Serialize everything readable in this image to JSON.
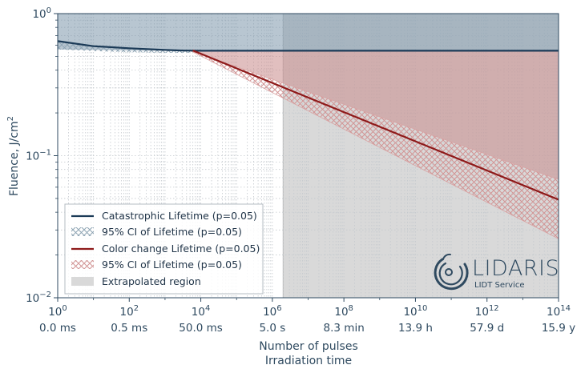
{
  "chart_data": {
    "type": "line",
    "xscale": "log",
    "yscale": "log",
    "xlim": [
      1,
      100000000000000.0
    ],
    "ylim": [
      0.01,
      1
    ],
    "x_ticks": [
      {
        "value": 1,
        "label_base": "10",
        "label_exp": "0",
        "time": "0.0 ms"
      },
      {
        "value": 100,
        "label_base": "10",
        "label_exp": "2",
        "time": "0.5 ms"
      },
      {
        "value": 10000,
        "label_base": "10",
        "label_exp": "4",
        "time": "50.0 ms"
      },
      {
        "value": 1000000,
        "label_base": "10",
        "label_exp": "6",
        "time": "5.0 s"
      },
      {
        "value": 100000000,
        "label_base": "10",
        "label_exp": "8",
        "time": "8.3 min"
      },
      {
        "value": 10000000000,
        "label_base": "10",
        "label_exp": "10",
        "time": "13.9 h"
      },
      {
        "value": 1000000000000,
        "label_base": "10",
        "label_exp": "12",
        "time": "57.9 d"
      },
      {
        "value": 100000000000000,
        "label_base": "10",
        "label_exp": "14",
        "time": "15.9 y"
      }
    ],
    "y_ticks": [
      {
        "value": 1,
        "label_base": "10",
        "label_exp": "0"
      },
      {
        "value": 0.1,
        "label_base": "10",
        "label_exp": "−1"
      },
      {
        "value": 0.01,
        "label_base": "10",
        "label_exp": "−2"
      }
    ],
    "xlabel": "Number of pulses",
    "xlabel2": "Irradiation time",
    "ylabel_main": "Fluence, J/cm",
    "ylabel_sup": "2",
    "extrapolated_region_start": 2000000,
    "grid": true,
    "legend_position": "lower-left",
    "series": [
      {
        "name": "Catastrophic Lifetime (p=0.05)",
        "kind": "line",
        "color": "#1b3a57",
        "x": [
          1,
          10,
          100,
          1000,
          3000,
          10000,
          1000000.0,
          10000000000.0,
          100000000000000.0
        ],
        "y": [
          0.64,
          0.59,
          0.57,
          0.555,
          0.55,
          0.548,
          0.548,
          0.548,
          0.548
        ]
      },
      {
        "name": "95% CI of Lifetime (p=0.05)",
        "kind": "ci-hatch",
        "color": "#8fa5b4",
        "fill": "#7d97ab",
        "x": [
          1,
          10,
          100,
          1000,
          10000,
          100000000.0,
          100000000000000.0
        ],
        "upper": [
          1,
          1,
          1,
          1,
          1,
          1,
          1
        ],
        "lower": [
          0.56,
          0.555,
          0.55,
          0.548,
          0.546,
          0.545,
          0.545
        ]
      },
      {
        "name": "Color change Lifetime (p=0.05)",
        "kind": "line",
        "color": "#8e1a1a",
        "x": [
          6000,
          100000000000000.0
        ],
        "y": [
          0.55,
          0.049
        ]
      },
      {
        "name": "95% CI of Lifetime (p=0.05)",
        "kind": "ci-hatch",
        "color": "#d79a9a",
        "fill": "#c98a8a",
        "x": [
          5000,
          100000000000000.0
        ],
        "upper": [
          0.55,
          0.068
        ],
        "lower": [
          0.55,
          0.026
        ],
        "cap": 0.55
      },
      {
        "name": "Extrapolated region",
        "kind": "region",
        "color": "#d9d9d9"
      }
    ]
  },
  "logo": {
    "name": "LIDARIS",
    "tagline": "LIDT Service"
  },
  "colors": {
    "axis": "#2f4a60",
    "grid": "#c4c9ce",
    "navy": "#1b3a57",
    "red": "#8e1a1a",
    "blue_fill": "#7d97ab",
    "red_fill": "#c98a8a",
    "extrap": "#d9d9d9"
  }
}
